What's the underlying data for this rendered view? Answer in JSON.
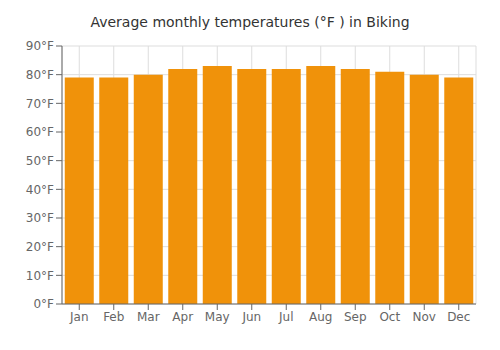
{
  "chart_data": {
    "type": "bar",
    "title": "Average monthly temperatures (°F ) in Biking",
    "categories": [
      "Jan",
      "Feb",
      "Mar",
      "Apr",
      "May",
      "Jun",
      "Jul",
      "Aug",
      "Sep",
      "Oct",
      "Nov",
      "Dec"
    ],
    "values": [
      79,
      79,
      80,
      82,
      83,
      82,
      82,
      83,
      82,
      81,
      80,
      79
    ],
    "color": "#F0920A",
    "ylim": [
      0,
      90
    ],
    "yticks": [
      {
        "value": 0,
        "label": "0°F"
      },
      {
        "value": 10,
        "label": "10°F"
      },
      {
        "value": 20,
        "label": "20°F"
      },
      {
        "value": 30,
        "label": "30°F"
      },
      {
        "value": 40,
        "label": "40°F"
      },
      {
        "value": 50,
        "label": "50°F"
      },
      {
        "value": 60,
        "label": "60°F"
      },
      {
        "value": 70,
        "label": "70°F"
      },
      {
        "value": 80,
        "label": "80°F"
      },
      {
        "value": 90,
        "label": "90°F"
      }
    ],
    "grid": true
  }
}
